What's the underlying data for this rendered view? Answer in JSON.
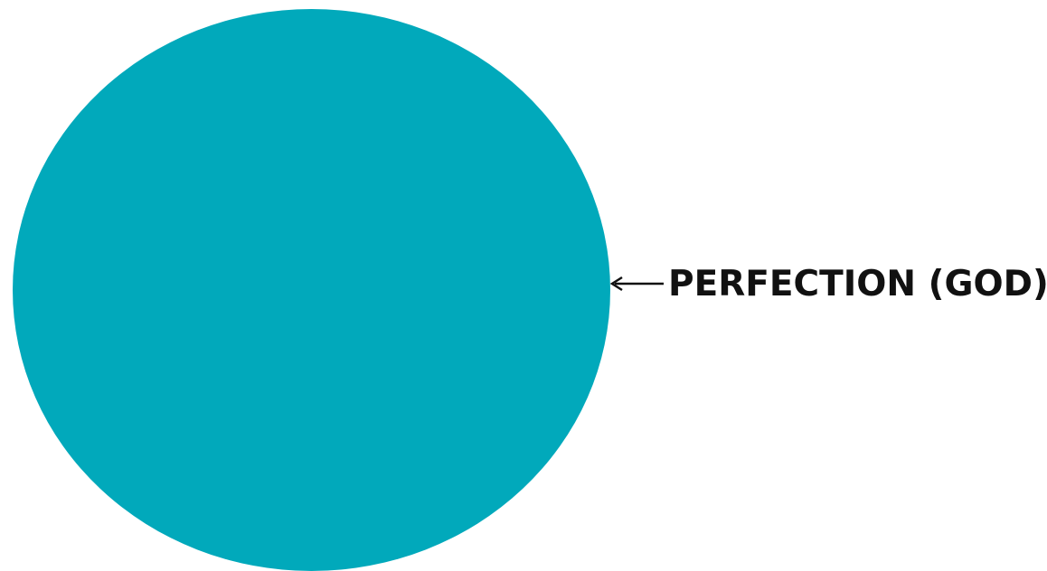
{
  "diagram": {
    "label": "PERFECTION (GOD)",
    "circle_color": "#01A9BB",
    "text_color": "#111111",
    "arrow_color": "#111111",
    "arrow_icon": "arrow-left-icon"
  }
}
